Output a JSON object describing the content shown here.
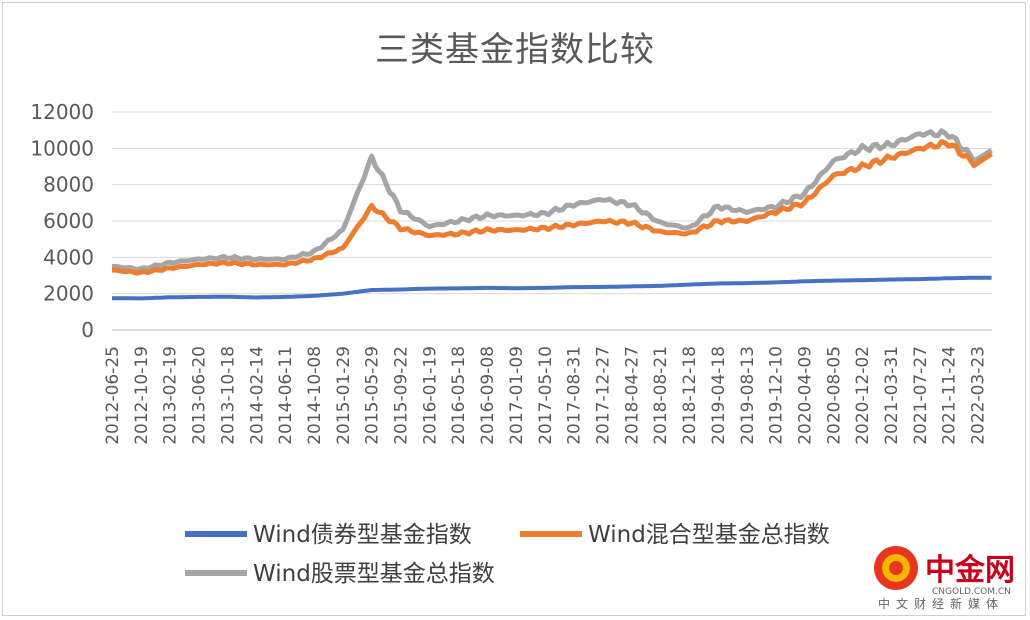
{
  "chart_data": {
    "type": "line",
    "title": "三类基金指数比较",
    "ylim": [
      0,
      12000
    ],
    "yticks": [
      0,
      2000,
      4000,
      6000,
      8000,
      10000,
      12000
    ],
    "grid": true,
    "legend_position": "bottom",
    "x_tick_labels": [
      "2012-06-25",
      "2012-10-19",
      "2013-02-19",
      "2013-06-20",
      "2013-10-18",
      "2014-02-14",
      "2014-06-11",
      "2014-10-08",
      "2015-01-29",
      "2015-05-29",
      "2015-09-22",
      "2016-01-19",
      "2016-05-18",
      "2016-09-08",
      "2017-01-09",
      "2017-05-10",
      "2017-08-31",
      "2017-12-27",
      "2018-04-27",
      "2018-08-21",
      "2018-12-18",
      "2019-04-18",
      "2019-08-13",
      "2019-12-10",
      "2020-04-09",
      "2020-08-05",
      "2020-12-02",
      "2021-03-31",
      "2021-07-27",
      "2021-11-24",
      "2022-03-23"
    ],
    "series": [
      {
        "name": "Wind债券型基金指数",
        "color": "#4472c4",
        "values": [
          1750,
          1740,
          1800,
          1820,
          1830,
          1790,
          1820,
          1880,
          2000,
          2200,
          2230,
          2280,
          2290,
          2320,
          2300,
          2320,
          2360,
          2370,
          2400,
          2430,
          2500,
          2560,
          2580,
          2620,
          2680,
          2720,
          2740,
          2780,
          2800,
          2850,
          2880
        ]
      },
      {
        "name": "Wind混合型基金总指数",
        "color": "#ed7d31",
        "values": [
          3300,
          3150,
          3400,
          3600,
          3700,
          3600,
          3600,
          3900,
          4500,
          6800,
          5600,
          5200,
          5300,
          5500,
          5500,
          5600,
          5800,
          6000,
          5900,
          5400,
          5300,
          6000,
          6000,
          6500,
          7000,
          8500,
          9000,
          9500,
          10000,
          10300,
          9000
        ]
      },
      {
        "name": "Wind股票型基金总指数",
        "color": "#a5a5a5",
        "values": [
          3500,
          3350,
          3700,
          3900,
          4000,
          3900,
          3900,
          4300,
          5500,
          9500,
          6600,
          5700,
          6000,
          6300,
          6300,
          6400,
          6900,
          7200,
          6900,
          5900,
          5600,
          6800,
          6500,
          6800,
          7500,
          9300,
          10000,
          10200,
          10800,
          10800,
          9200
        ]
      }
    ]
  },
  "watermark": {
    "name": "中金网",
    "domain": "CNGOLD.COM.CN",
    "tagline": "中文财经新媒体"
  }
}
